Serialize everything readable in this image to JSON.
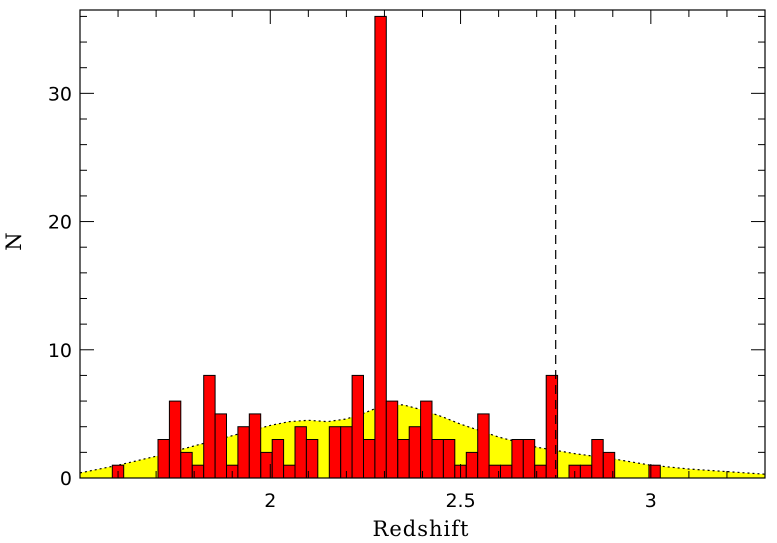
{
  "chart_data": {
    "type": "bar",
    "xlabel": "Redshift",
    "ylabel": "N",
    "xlim": [
      1.5,
      3.3
    ],
    "ylim": [
      0,
      36.5
    ],
    "grid": false,
    "x_ticks": [
      {
        "value": 2,
        "label": "2"
      },
      {
        "value": 2.5,
        "label": "2.5"
      },
      {
        "value": 3,
        "label": "3"
      }
    ],
    "y_ticks": [
      {
        "value": 0,
        "label": "0"
      },
      {
        "value": 10,
        "label": "10"
      },
      {
        "value": 20,
        "label": "20"
      },
      {
        "value": 30,
        "label": "30"
      }
    ],
    "bin_width": 0.03,
    "bins": [
      {
        "x": 1.6,
        "n": 1
      },
      {
        "x": 1.72,
        "n": 3
      },
      {
        "x": 1.75,
        "n": 6
      },
      {
        "x": 1.78,
        "n": 2
      },
      {
        "x": 1.81,
        "n": 1
      },
      {
        "x": 1.84,
        "n": 8
      },
      {
        "x": 1.87,
        "n": 5
      },
      {
        "x": 1.9,
        "n": 1
      },
      {
        "x": 1.93,
        "n": 4
      },
      {
        "x": 1.96,
        "n": 5
      },
      {
        "x": 1.99,
        "n": 2
      },
      {
        "x": 2.02,
        "n": 3
      },
      {
        "x": 2.05,
        "n": 1
      },
      {
        "x": 2.08,
        "n": 4
      },
      {
        "x": 2.11,
        "n": 3
      },
      {
        "x": 2.17,
        "n": 4
      },
      {
        "x": 2.2,
        "n": 4
      },
      {
        "x": 2.23,
        "n": 8
      },
      {
        "x": 2.26,
        "n": 3
      },
      {
        "x": 2.29,
        "n": 36
      },
      {
        "x": 2.32,
        "n": 6
      },
      {
        "x": 2.35,
        "n": 3
      },
      {
        "x": 2.38,
        "n": 4
      },
      {
        "x": 2.41,
        "n": 6
      },
      {
        "x": 2.44,
        "n": 3
      },
      {
        "x": 2.47,
        "n": 3
      },
      {
        "x": 2.5,
        "n": 1
      },
      {
        "x": 2.53,
        "n": 2
      },
      {
        "x": 2.56,
        "n": 5
      },
      {
        "x": 2.59,
        "n": 1
      },
      {
        "x": 2.62,
        "n": 1
      },
      {
        "x": 2.65,
        "n": 3
      },
      {
        "x": 2.68,
        "n": 3
      },
      {
        "x": 2.71,
        "n": 1
      },
      {
        "x": 2.74,
        "n": 8
      },
      {
        "x": 2.8,
        "n": 1
      },
      {
        "x": 2.83,
        "n": 1
      },
      {
        "x": 2.86,
        "n": 3
      },
      {
        "x": 2.89,
        "n": 2
      },
      {
        "x": 3.01,
        "n": 1
      }
    ],
    "expected_distribution": {
      "color": "#ffff00",
      "x": [
        1.5,
        1.6,
        1.7,
        1.8,
        1.9,
        2.0,
        2.05,
        2.1,
        2.15,
        2.2,
        2.25,
        2.3,
        2.35,
        2.4,
        2.45,
        2.5,
        2.6,
        2.7,
        2.8,
        2.9,
        3.0,
        3.1,
        3.2,
        3.3
      ],
      "y": [
        0.4,
        1.0,
        1.7,
        2.5,
        3.3,
        4.1,
        4.4,
        4.5,
        4.4,
        4.6,
        5.1,
        5.7,
        5.7,
        5.3,
        4.8,
        4.2,
        3.2,
        2.4,
        1.9,
        1.5,
        1.0,
        0.7,
        0.5,
        0.3
      ]
    },
    "reference_line": {
      "x": 2.75,
      "style": "dashed"
    },
    "colors": {
      "bar_fill": "#ff0000",
      "bar_stroke": "#000000",
      "curve_fill": "#ffff00",
      "axis": "#000000"
    }
  }
}
